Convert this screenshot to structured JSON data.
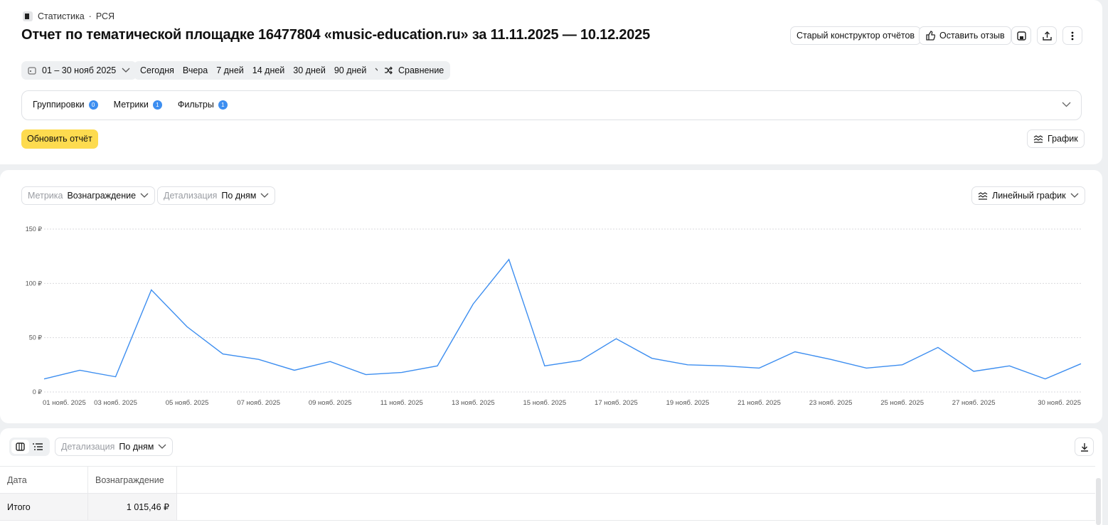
{
  "breadcrumb": {
    "section": "Статистика",
    "subsection": "РСЯ"
  },
  "header": {
    "title": "Отчет по тематической площадке 16477804 «music-education.ru» за 11.11.2025 — 10.12.2025",
    "actions": [
      "Старый конструктор отчётов",
      "Оставить отзыв"
    ]
  },
  "period": {
    "range": "01 – 30 нояб 2025",
    "presets": [
      "Сегодня",
      "Вчера",
      "7 дней",
      "14 дней",
      "30 дней",
      "90 дней"
    ],
    "compare": "Сравнение"
  },
  "settings": [
    {
      "label": "Группировки",
      "count": 0
    },
    {
      "label": "Метрики",
      "count": 1
    },
    {
      "label": "Фильтры",
      "count": 1
    }
  ],
  "update_button": "Обновить отчёт",
  "view_toggle": "График",
  "chart_controls": {
    "metric_label": "Метрика",
    "metric": "Вознаграждение",
    "detail_label": "Детализация",
    "detail": "По дням",
    "chart_type": "Линейный график"
  },
  "chart_data": {
    "type": "line",
    "categories": [
      "01 нояб. 2025",
      null,
      "03 нояб. 2025",
      null,
      "05 нояб. 2025",
      null,
      "07 нояб. 2025",
      null,
      "09 нояб. 2025",
      null,
      "11 нояб. 2025",
      null,
      "13 нояб. 2025",
      null,
      "15 нояб. 2025",
      null,
      "17 нояб. 2025",
      null,
      "19 нояб. 2025",
      null,
      "21 нояб. 2025",
      null,
      "23 нояб. 2025",
      null,
      "25 нояб. 2025",
      null,
      "27 нояб. 2025",
      null,
      null,
      "30 нояб. 2025"
    ],
    "values": [
      12,
      20,
      14,
      94,
      60,
      35,
      30,
      20,
      28,
      16,
      18,
      24,
      81,
      122,
      24,
      29,
      49,
      31,
      25,
      24,
      22,
      37,
      30,
      22,
      25,
      41,
      19,
      24,
      12,
      26
    ],
    "color": "#3d8ef0",
    "ylim": [
      0,
      150
    ],
    "yticks": [
      {
        "value": 0,
        "label": "0 ₽"
      },
      {
        "value": 50,
        "label": "50 ₽"
      },
      {
        "value": 100,
        "label": "100 ₽"
      },
      {
        "value": 150,
        "label": "150 ₽"
      }
    ],
    "grid": true
  },
  "table": {
    "detail_label": "Детализация",
    "detail": "По дням",
    "columns": [
      "Дата",
      "Вознаграждение"
    ],
    "rows": [
      [
        "Итого",
        "1 015,46 ₽"
      ]
    ]
  }
}
